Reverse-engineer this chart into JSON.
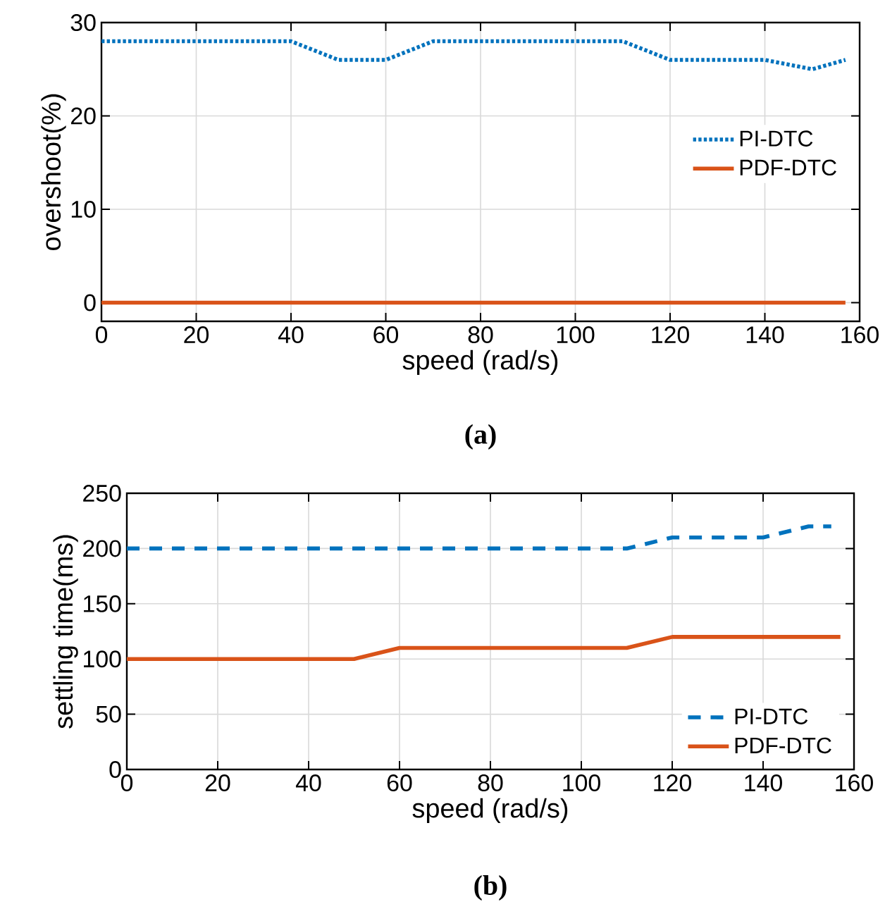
{
  "chart_data": [
    {
      "type": "line",
      "xlabel": "speed (rad/s)",
      "ylabel": "overshoot(%)",
      "annotations": [
        "(a)"
      ],
      "xlim": [
        0,
        160
      ],
      "ylim": [
        -2,
        30
      ],
      "xticks": [
        0,
        20,
        40,
        60,
        80,
        100,
        120,
        140,
        160
      ],
      "yticks": [
        0,
        10,
        20,
        30
      ],
      "grid": true,
      "legend": "right",
      "series": [
        {
          "name": "PI-DTC",
          "color": "#0072bd",
          "line_style": "dotted",
          "x": [
            0,
            10,
            20,
            30,
            40,
            50,
            60,
            70,
            80,
            90,
            100,
            110,
            120,
            130,
            140,
            150,
            157
          ],
          "values": [
            28,
            28,
            28,
            28,
            28,
            26,
            26,
            28,
            28,
            28,
            28,
            28,
            26,
            26,
            26,
            25,
            26
          ]
        },
        {
          "name": "PDF-DTC",
          "color": "#d95319",
          "line_style": "solid",
          "x": [
            0,
            10,
            20,
            30,
            40,
            50,
            60,
            70,
            80,
            90,
            100,
            110,
            120,
            130,
            140,
            150,
            157
          ],
          "values": [
            0,
            0,
            0,
            0,
            0,
            0,
            0,
            0,
            0,
            0,
            0,
            0,
            0,
            0,
            0,
            0,
            0
          ]
        }
      ]
    },
    {
      "type": "line",
      "xlabel": "speed (rad/s)",
      "ylabel": "settling time(ms)",
      "annotations": [
        "(b)"
      ],
      "xlim": [
        0,
        160
      ],
      "ylim": [
        0,
        250
      ],
      "xticks": [
        0,
        20,
        40,
        60,
        80,
        100,
        120,
        140,
        160
      ],
      "yticks": [
        0,
        50,
        100,
        150,
        200,
        250
      ],
      "grid": true,
      "legend": "bottom right",
      "series": [
        {
          "name": "PI-DTC",
          "color": "#0072bd",
          "line_style": "dashed",
          "x": [
            0,
            10,
            20,
            30,
            40,
            50,
            60,
            70,
            80,
            90,
            100,
            110,
            120,
            130,
            140,
            150,
            155
          ],
          "values": [
            200,
            200,
            200,
            200,
            200,
            200,
            200,
            200,
            200,
            200,
            200,
            200,
            210,
            210,
            210,
            220,
            220
          ]
        },
        {
          "name": "PDF-DTC",
          "color": "#d95319",
          "line_style": "solid",
          "x": [
            0,
            10,
            20,
            30,
            40,
            50,
            60,
            70,
            80,
            90,
            100,
            110,
            120,
            130,
            140,
            150,
            157
          ],
          "values": [
            100,
            100,
            100,
            100,
            100,
            100,
            110,
            110,
            110,
            110,
            110,
            110,
            120,
            120,
            120,
            120,
            120
          ]
        }
      ]
    }
  ]
}
